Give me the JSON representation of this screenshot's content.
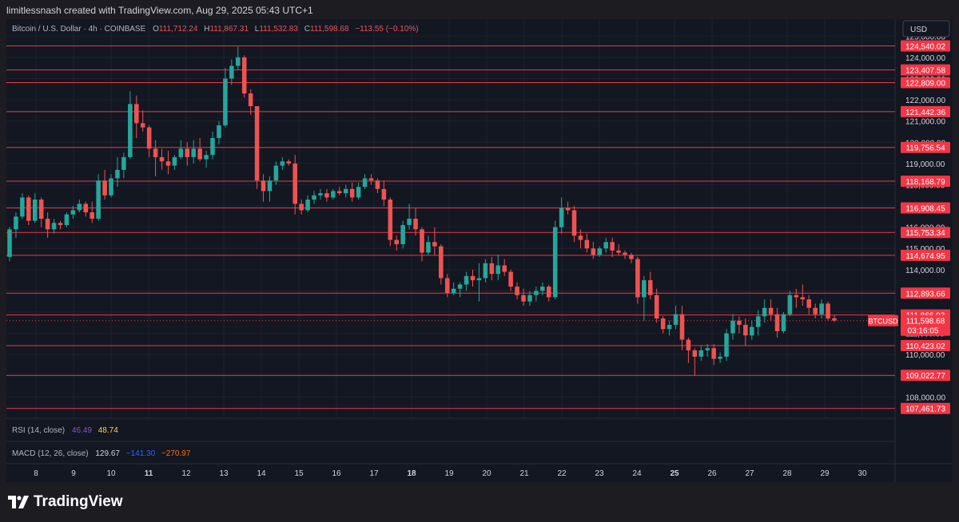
{
  "header": {
    "credit": "limitlessnash created with TradingView.com, Aug 29, 2025 05:43 UTC+1",
    "symbol": "Bitcoin / U.S. Dollar · 4h · COINBASE",
    "ohlc": {
      "o_label": "O",
      "o": "111,712.24",
      "h_label": "H",
      "h": "111,867.31",
      "l_label": "L",
      "l": "111,532.83",
      "c_label": "C",
      "c": "111,598.68",
      "change": "−113.55 (−0.10%)"
    }
  },
  "currency_button": "USD",
  "indicators": {
    "rsi": {
      "label": "RSI (14, close)",
      "v1": "46.49",
      "v2": "48.74"
    },
    "macd": {
      "label": "MACD (12, 26, close)",
      "v1": "129.67",
      "v2": "−141.30",
      "v3": "−270.97"
    }
  },
  "footer": {
    "brand": "TradingView"
  },
  "colors": {
    "up": "#26a69a",
    "down": "#ef5350",
    "level": "#f23645",
    "background": "#131722",
    "axis_text": "#d1d4dc"
  },
  "chart_data": {
    "type": "candlestick",
    "ylim": [
      107000,
      125800
    ],
    "y_ticks": [
      "108,000.00",
      "109,000.00",
      "110,000.00",
      "111,000.00",
      "112,000.00",
      "113,000.00",
      "114,000.00",
      "115,000.00",
      "116,000.00",
      "117,000.00",
      "118,000.00",
      "119,000.00",
      "120,000.00",
      "121,000.00",
      "122,000.00",
      "123,000.00",
      "124,000.00",
      "125,000.00"
    ],
    "x_ticks": [
      {
        "label": "8",
        "day": 8,
        "bold": false
      },
      {
        "label": "9",
        "day": 9,
        "bold": false
      },
      {
        "label": "10",
        "day": 10,
        "bold": false
      },
      {
        "label": "11",
        "day": 11,
        "bold": true
      },
      {
        "label": "12",
        "day": 12,
        "bold": false
      },
      {
        "label": "13",
        "day": 13,
        "bold": false
      },
      {
        "label": "14",
        "day": 14,
        "bold": false
      },
      {
        "label": "15",
        "day": 15,
        "bold": false
      },
      {
        "label": "16",
        "day": 16,
        "bold": false
      },
      {
        "label": "17",
        "day": 17,
        "bold": false
      },
      {
        "label": "18",
        "day": 18,
        "bold": true
      },
      {
        "label": "19",
        "day": 19,
        "bold": false
      },
      {
        "label": "20",
        "day": 20,
        "bold": false
      },
      {
        "label": "21",
        "day": 21,
        "bold": false
      },
      {
        "label": "22",
        "day": 22,
        "bold": false
      },
      {
        "label": "23",
        "day": 23,
        "bold": false
      },
      {
        "label": "24",
        "day": 24,
        "bold": false
      },
      {
        "label": "25",
        "day": 25,
        "bold": true
      },
      {
        "label": "26",
        "day": 26,
        "bold": false
      },
      {
        "label": "27",
        "day": 27,
        "bold": false
      },
      {
        "label": "28",
        "day": 28,
        "bold": false
      },
      {
        "label": "29",
        "day": 29,
        "bold": false
      },
      {
        "label": "30",
        "day": 30,
        "bold": false
      }
    ],
    "levels": [
      {
        "value": 124540.02,
        "label": "124,540.02"
      },
      {
        "value": 123407.58,
        "label": "123,407.58"
      },
      {
        "value": 122809.0,
        "label": "122,809.00"
      },
      {
        "value": 121442.36,
        "label": "121,442.36"
      },
      {
        "value": 119756.54,
        "label": "119,756.54"
      },
      {
        "value": 118168.79,
        "label": "118,168.79"
      },
      {
        "value": 116908.45,
        "label": "116,908.45"
      },
      {
        "value": 115753.34,
        "label": "115,753.34"
      },
      {
        "value": 114674.95,
        "label": "114,674.95"
      },
      {
        "value": 112893.66,
        "label": "112,893.66"
      },
      {
        "value": 111866.03,
        "label": "111,866.03"
      },
      {
        "value": 110423.02,
        "label": "110,423.02"
      },
      {
        "value": 109022.77,
        "label": "109,022.77"
      },
      {
        "value": 107461.73,
        "label": "107,461.73"
      }
    ],
    "last_price": {
      "value": 111598.68,
      "label": "111,598.68",
      "countdown": "03:16:05",
      "symbol_tag": "BTCUSD"
    },
    "candles": [
      [
        114600,
        116000,
        114400,
        115900
      ],
      [
        115900,
        116700,
        115500,
        116500
      ],
      [
        116500,
        117600,
        116400,
        117400
      ],
      [
        117400,
        117500,
        116100,
        116300
      ],
      [
        116300,
        117600,
        116200,
        117300
      ],
      [
        117300,
        117400,
        116000,
        116400
      ],
      [
        116400,
        116700,
        115500,
        115900
      ],
      [
        115900,
        116400,
        115700,
        116200
      ],
      [
        116200,
        116300,
        115900,
        116100
      ],
      [
        116100,
        116700,
        116000,
        116600
      ],
      [
        116600,
        117000,
        116400,
        116800
      ],
      [
        116800,
        117300,
        116700,
        117100
      ],
      [
        117100,
        117200,
        116500,
        116700
      ],
      [
        116700,
        117200,
        116200,
        116400
      ],
      [
        116400,
        118500,
        116300,
        118200
      ],
      [
        118200,
        118700,
        117300,
        117500
      ],
      [
        117500,
        118500,
        117400,
        118300
      ],
      [
        118300,
        119300,
        117900,
        118700
      ],
      [
        118700,
        119500,
        118300,
        119300
      ],
      [
        119300,
        122400,
        119200,
        121800
      ],
      [
        121800,
        122200,
        120200,
        120900
      ],
      [
        120900,
        121500,
        120500,
        120700
      ],
      [
        120700,
        120800,
        119300,
        119700
      ],
      [
        119700,
        120100,
        118400,
        119300
      ],
      [
        119300,
        119700,
        118700,
        119100
      ],
      [
        119100,
        119600,
        118500,
        118900
      ],
      [
        118900,
        119400,
        118700,
        119300
      ],
      [
        119300,
        120100,
        119200,
        119700
      ],
      [
        119700,
        120000,
        118900,
        119300
      ],
      [
        119300,
        120100,
        119000,
        119700
      ],
      [
        119700,
        120200,
        119100,
        119200
      ],
      [
        119200,
        119600,
        118800,
        119400
      ],
      [
        119400,
        120500,
        119200,
        120200
      ],
      [
        120200,
        121000,
        119900,
        120800
      ],
      [
        120800,
        123500,
        120700,
        123000
      ],
      [
        123000,
        123900,
        122700,
        123600
      ],
      [
        123600,
        124500,
        123400,
        124000
      ],
      [
        124000,
        124100,
        122100,
        122300
      ],
      [
        122300,
        122500,
        121300,
        121700
      ],
      [
        121700,
        121700,
        117800,
        118200
      ],
      [
        118200,
        118500,
        117200,
        117700
      ],
      [
        117700,
        118400,
        117200,
        118200
      ],
      [
        118200,
        119100,
        118000,
        118900
      ],
      [
        118900,
        119300,
        118700,
        119100
      ],
      [
        119100,
        119200,
        118900,
        119000
      ],
      [
        119000,
        119400,
        116600,
        117100
      ],
      [
        117100,
        117300,
        116600,
        116800
      ],
      [
        116800,
        117500,
        116700,
        117300
      ],
      [
        117300,
        117700,
        117100,
        117500
      ],
      [
        117500,
        117800,
        117300,
        117600
      ],
      [
        117600,
        117800,
        117200,
        117400
      ],
      [
        117400,
        117800,
        117300,
        117700
      ],
      [
        117700,
        117900,
        117500,
        117600
      ],
      [
        117600,
        118000,
        117400,
        117800
      ],
      [
        117800,
        118100,
        117200,
        117400
      ],
      [
        117400,
        118100,
        117300,
        117900
      ],
      [
        117900,
        118500,
        117800,
        118300
      ],
      [
        118300,
        118500,
        118000,
        118200
      ],
      [
        118200,
        118300,
        117600,
        117800
      ],
      [
        117800,
        118200,
        117000,
        117300
      ],
      [
        117300,
        117400,
        115100,
        115400
      ],
      [
        115400,
        115600,
        114900,
        115200
      ],
      [
        115200,
        116300,
        115000,
        116100
      ],
      [
        116100,
        117100,
        115900,
        116400
      ],
      [
        116400,
        116900,
        115600,
        115900
      ],
      [
        115900,
        116000,
        114400,
        114800
      ],
      [
        114800,
        115600,
        114700,
        115300
      ],
      [
        115300,
        116000,
        114700,
        115100
      ],
      [
        115100,
        115200,
        113300,
        113600
      ],
      [
        113600,
        113800,
        112700,
        112900
      ],
      [
        112900,
        113400,
        112800,
        113100
      ],
      [
        113100,
        113400,
        112700,
        113300
      ],
      [
        113300,
        113900,
        113000,
        113700
      ],
      [
        113700,
        114000,
        113200,
        113500
      ],
      [
        113500,
        114300,
        112500,
        113600
      ],
      [
        113600,
        114500,
        113400,
        114300
      ],
      [
        114300,
        114600,
        113500,
        113800
      ],
      [
        113800,
        114700,
        113500,
        114200
      ],
      [
        114200,
        114500,
        113700,
        113900
      ],
      [
        113900,
        114000,
        113000,
        113200
      ],
      [
        113200,
        113400,
        112600,
        112800
      ],
      [
        112800,
        113100,
        112300,
        112500
      ],
      [
        112500,
        113000,
        112300,
        112800
      ],
      [
        112800,
        113200,
        112500,
        113000
      ],
      [
        113000,
        113400,
        112800,
        113200
      ],
      [
        113200,
        113300,
        112500,
        112700
      ],
      [
        112700,
        116300,
        112600,
        116000
      ],
      [
        116000,
        117400,
        115700,
        116900
      ],
      [
        116900,
        117200,
        116600,
        116800
      ],
      [
        116800,
        117000,
        115300,
        115600
      ],
      [
        115600,
        115900,
        115000,
        115400
      ],
      [
        115400,
        115700,
        114800,
        115000
      ],
      [
        115000,
        115300,
        114500,
        114700
      ],
      [
        114700,
        115100,
        114600,
        115000
      ],
      [
        115000,
        115500,
        114800,
        115300
      ],
      [
        115300,
        115500,
        114600,
        114900
      ],
      [
        114900,
        115200,
        114700,
        114800
      ],
      [
        114800,
        114900,
        114500,
        114700
      ],
      [
        114700,
        114800,
        114300,
        114500
      ],
      [
        114500,
        114600,
        112400,
        112700
      ],
      [
        112700,
        113700,
        111600,
        113500
      ],
      [
        113500,
        113900,
        112600,
        112800
      ],
      [
        112800,
        113100,
        111500,
        111700
      ],
      [
        111700,
        111800,
        111000,
        111200
      ],
      [
        111200,
        111600,
        110900,
        111400
      ],
      [
        111400,
        112300,
        111200,
        111900
      ],
      [
        111900,
        112300,
        110200,
        110700
      ],
      [
        110700,
        110800,
        109600,
        110200
      ],
      [
        110200,
        110300,
        109000,
        109900
      ],
      [
        109900,
        110400,
        109700,
        110200
      ],
      [
        110200,
        110500,
        109900,
        110300
      ],
      [
        110300,
        110500,
        109500,
        109800
      ],
      [
        109800,
        110100,
        109600,
        109900
      ],
      [
        109900,
        111200,
        109700,
        111000
      ],
      [
        111000,
        111900,
        110700,
        111600
      ],
      [
        111600,
        111800,
        111000,
        111400
      ],
      [
        111400,
        111700,
        110400,
        110900
      ],
      [
        110900,
        111600,
        110700,
        111300
      ],
      [
        111300,
        112100,
        110900,
        111800
      ],
      [
        111800,
        112600,
        111500,
        112200
      ],
      [
        112200,
        112600,
        111600,
        111900
      ],
      [
        111900,
        112200,
        110800,
        111100
      ],
      [
        111100,
        112000,
        111000,
        111900
      ],
      [
        111900,
        113000,
        111800,
        112800
      ],
      [
        112800,
        113100,
        112200,
        112700
      ],
      [
        112700,
        113300,
        112300,
        112600
      ],
      [
        112600,
        112800,
        111900,
        112200
      ],
      [
        112200,
        112400,
        111700,
        111900
      ],
      [
        111900,
        112600,
        111700,
        112400
      ],
      [
        112400,
        112500,
        111600,
        111700
      ],
      [
        111712,
        111867,
        111533,
        111599
      ]
    ]
  }
}
